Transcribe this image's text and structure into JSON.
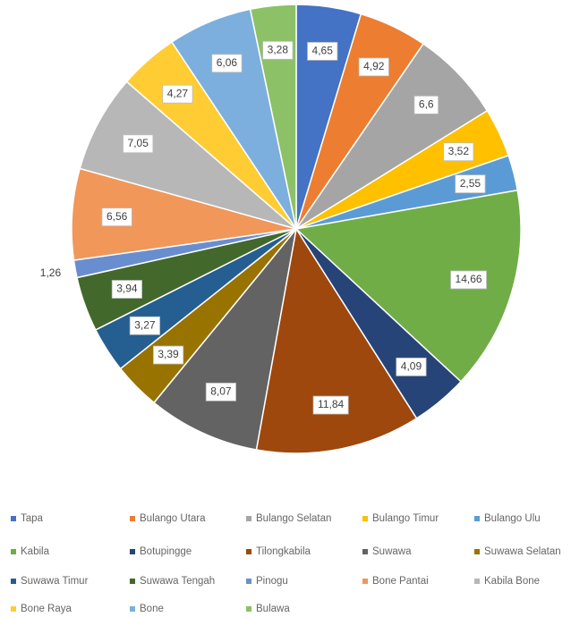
{
  "chart_data": {
    "type": "pie",
    "categories": [
      "Tapa",
      "Bulango Utara",
      "Bulango Selatan",
      "Bulango Timur",
      "Bulango Ulu",
      "Kabila",
      "Botupingge",
      "Tilongkabila",
      "Suwawa",
      "Suwawa Selatan",
      "Suwawa Timur",
      "Suwawa Tengah",
      "Pinogu",
      "Bone Pantai",
      "Kabila Bone",
      "Bone Raya",
      "Bone",
      "Bulawa"
    ],
    "values": [
      4.65,
      4.92,
      6.6,
      3.52,
      2.55,
      14.66,
      4.09,
      11.84,
      8.07,
      3.39,
      3.27,
      3.94,
      1.26,
      6.56,
      7.05,
      4.27,
      6.06,
      3.28
    ],
    "value_labels": [
      "4,65",
      "4,92",
      "6,6",
      "3,52",
      "2,55",
      "14,66",
      "4,09",
      "11,84",
      "8,07",
      "3,39",
      "3,27",
      "3,94",
      "1,26",
      "6,56",
      "7,05",
      "4,27",
      "6,06",
      "3,28"
    ],
    "colors": [
      "#4472c4",
      "#ed7d31",
      "#a5a5a5",
      "#ffc000",
      "#5b9bd5",
      "#70ad47",
      "#264478",
      "#9e480e",
      "#636363",
      "#997300",
      "#255e91",
      "#43682b",
      "#698ed0",
      "#f1975a",
      "#b7b7b7",
      "#ffcd33",
      "#7cafdd",
      "#8cc168"
    ],
    "legend": "bottom"
  }
}
